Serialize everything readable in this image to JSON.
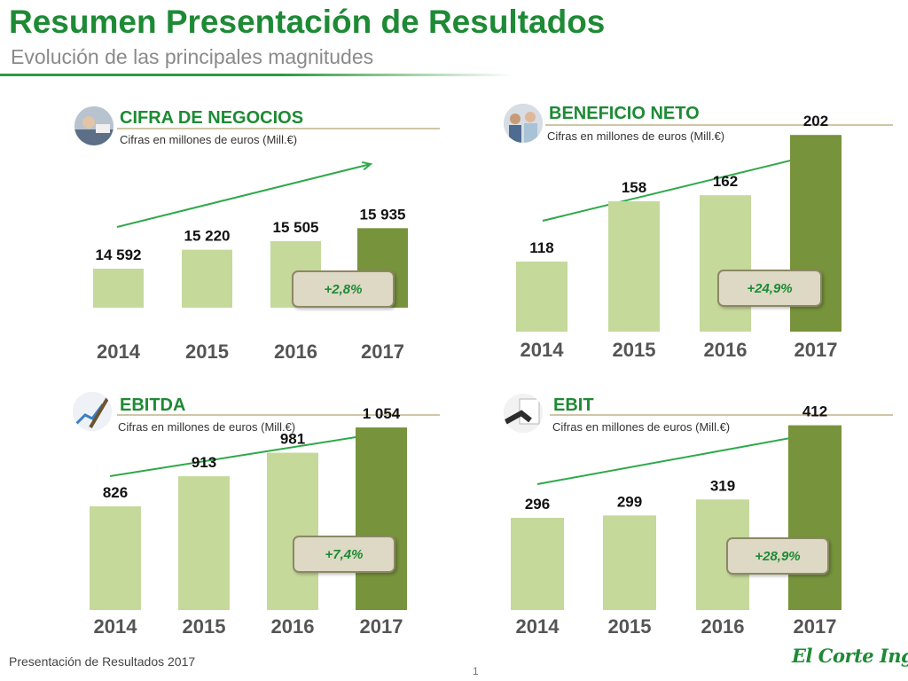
{
  "header": {
    "title": "Resumen Presentación de Resultados",
    "subtitle": "Evolución de las principales magnitudes"
  },
  "colors": {
    "brand_green": "#1e8a35",
    "bar_light": "#c5d99b",
    "bar_dark": "#77933c",
    "arrow": "#2ea84a"
  },
  "chart_data": [
    {
      "type": "bar",
      "title": "CIFRA DE NEGOCIOS",
      "subtitle": "Cifras en millones de euros (Mill.€)",
      "categories": [
        "2014",
        "2015",
        "2016",
        "2017"
      ],
      "values": [
        14592,
        15220,
        15505,
        15935
      ],
      "value_labels": [
        "14 592",
        "15 220",
        "15 505",
        "15 935"
      ],
      "growth_label": "+2,8%",
      "icon": "business-meeting-icon"
    },
    {
      "type": "bar",
      "title": "BENEFICIO NETO",
      "subtitle": "Cifras en millones de euros (Mill.€)",
      "categories": [
        "2014",
        "2015",
        "2016",
        "2017"
      ],
      "values": [
        118,
        158,
        162,
        202
      ],
      "value_labels": [
        "118",
        "158",
        "162",
        "202"
      ],
      "growth_label": "+24,9%",
      "icon": "team-people-icon"
    },
    {
      "type": "bar",
      "title": "EBITDA",
      "subtitle": "Cifras en millones de euros (Mill.€)",
      "categories": [
        "2014",
        "2015",
        "2016",
        "2017"
      ],
      "values": [
        826,
        913,
        981,
        1054
      ],
      "value_labels": [
        "826",
        "913",
        "981",
        "1 054"
      ],
      "growth_label": "+7,4%",
      "icon": "pen-on-chart-icon"
    },
    {
      "type": "bar",
      "title": "EBIT",
      "subtitle": "Cifras en millones de euros (Mill.€)",
      "categories": [
        "2014",
        "2015",
        "2016",
        "2017"
      ],
      "values": [
        296,
        299,
        319,
        412
      ],
      "value_labels": [
        "296",
        "299",
        "319",
        "412"
      ],
      "growth_label": "+28,9%",
      "icon": "handshake-document-icon"
    }
  ],
  "footer": {
    "text": "Presentación de Resultados 2017",
    "page_number": "1",
    "logo_text": "El Corte Inglés"
  }
}
